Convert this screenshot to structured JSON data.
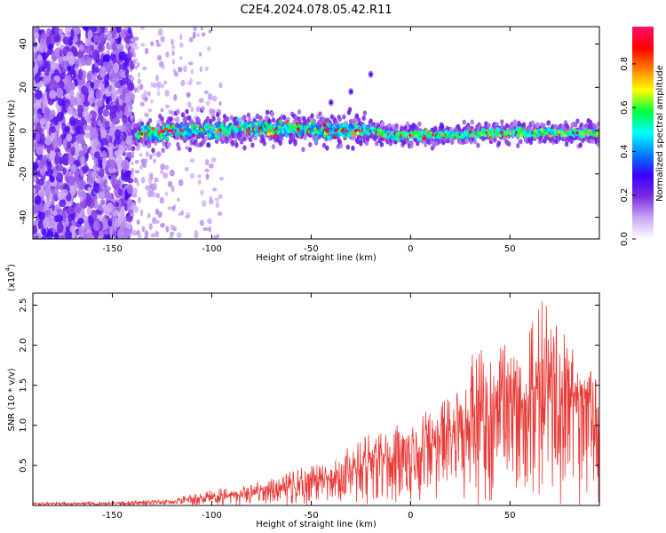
{
  "title": "C2E4.2024.078.05.42.R11",
  "colors": {
    "snr_line": "#e83a36",
    "axis": "#000000",
    "background": "#ffffff"
  },
  "chart_data": [
    {
      "type": "heatmap",
      "xlabel": "Height of straight line (km)",
      "ylabel": "Frequency (Hz)",
      "xlim": [
        -190,
        95
      ],
      "ylim": [
        -50,
        48
      ],
      "xticks": [
        -150,
        -100,
        -50,
        0,
        50
      ],
      "xtick_labels": [
        "-150",
        "-100",
        "-50",
        "0",
        "50"
      ],
      "yticks": [
        -40,
        -20,
        0,
        20,
        40
      ],
      "ytick_labels": [
        "-40",
        "-20",
        "0",
        "20",
        "40"
      ],
      "colorbar": {
        "label": "Normalized spectral amplitude",
        "range": [
          0,
          0.97
        ],
        "ticks": [
          0.0,
          0.2,
          0.4,
          0.6,
          0.8
        ],
        "tick_labels": [
          "0.0",
          "0.2",
          "0.4",
          "0.6",
          "0.8"
        ],
        "colormap": "rainbow",
        "colormap_stops": [
          "#ffffff",
          "#c9a6f5",
          "#7b2be0",
          "#3a00ff",
          "#0080ff",
          "#00ffff",
          "#00ff40",
          "#ffff00",
          "#ff8000",
          "#ff0000",
          "#ff1070"
        ]
      },
      "features": {
        "noise_region_x": [
          -190,
          -140
        ],
        "sparse_noise_x": [
          -140,
          -115
        ],
        "signal_ridge": [
          {
            "x": -140,
            "f": -2
          },
          {
            "x": -120,
            "f": 0
          },
          {
            "x": -100,
            "f": 0
          },
          {
            "x": -80,
            "f": 1
          },
          {
            "x": -60,
            "f": 1
          },
          {
            "x": -40,
            "f": 0
          },
          {
            "x": -20,
            "f": 0
          },
          {
            "x": -10,
            "f": -2
          },
          {
            "x": 0,
            "f": -2
          },
          {
            "x": 20,
            "f": -2
          },
          {
            "x": 40,
            "f": -1
          },
          {
            "x": 60,
            "f": -1
          },
          {
            "x": 80,
            "f": -1
          },
          {
            "x": 95,
            "f": -1
          }
        ],
        "secondary_trace": [
          {
            "x": -40,
            "f": 13
          },
          {
            "x": -30,
            "f": 18
          },
          {
            "x": -20,
            "f": 26
          }
        ]
      }
    },
    {
      "type": "line",
      "xlabel": "Height of straight line (km)",
      "ylabel": "SNR (10 * v/v)",
      "yscale_label": "(x10",
      "yscale_exponent": "4",
      "yscale_suffix": ")",
      "xlim": [
        -190,
        95
      ],
      "ylim": [
        0,
        2.65
      ],
      "xticks": [
        -150,
        -100,
        -50,
        0,
        50
      ],
      "xtick_labels": [
        "-150",
        "-100",
        "-50",
        "0",
        "50"
      ],
      "yticks": [
        0.5,
        1.0,
        1.5,
        2.0,
        2.5
      ],
      "ytick_labels": [
        "0.5",
        "1.0",
        "1.5",
        "2.0",
        "2.5"
      ],
      "series": [
        {
          "envelope": [
            {
              "x": -190,
              "mean": 0.02,
              "max": 0.04
            },
            {
              "x": -150,
              "mean": 0.02,
              "max": 0.05
            },
            {
              "x": -120,
              "mean": 0.04,
              "max": 0.08
            },
            {
              "x": -100,
              "mean": 0.08,
              "max": 0.2
            },
            {
              "x": -80,
              "mean": 0.12,
              "max": 0.27
            },
            {
              "x": -60,
              "mean": 0.2,
              "max": 0.45
            },
            {
              "x": -40,
              "mean": 0.3,
              "max": 0.6
            },
            {
              "x": -20,
              "mean": 0.42,
              "max": 0.9
            },
            {
              "x": 0,
              "mean": 0.6,
              "max": 1.1
            },
            {
              "x": 20,
              "mean": 0.8,
              "max": 1.45
            },
            {
              "x": 30,
              "mean": 0.9,
              "max": 1.9
            },
            {
              "x": 40,
              "mean": 1.0,
              "max": 2.0
            },
            {
              "x": 50,
              "mean": 1.1,
              "max": 2.1
            },
            {
              "x": 60,
              "mean": 1.15,
              "max": 2.2
            },
            {
              "x": 67,
              "mean": 1.2,
              "max": 2.65
            },
            {
              "x": 80,
              "mean": 1.15,
              "max": 2.0
            },
            {
              "x": 95,
              "mean": 1.2,
              "max": 1.6
            }
          ]
        }
      ]
    }
  ]
}
